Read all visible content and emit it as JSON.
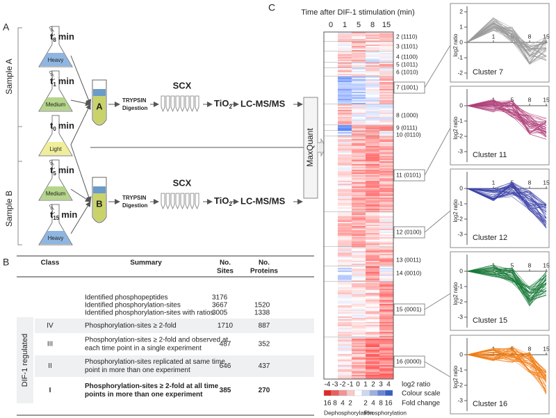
{
  "panel_a": {
    "label": "A",
    "sample_a": "Sample A",
    "sample_b": "Sample B",
    "flasks": [
      {
        "base": "t",
        "sub": "8",
        "unit": "min",
        "label": "Heavy",
        "tag": "DIF-1"
      },
      {
        "base": "t",
        "sub": "1",
        "unit": "min",
        "label": "Medium",
        "tag": "DIF-1"
      },
      {
        "base": "t",
        "sub": "0",
        "unit": "min",
        "label": "Light"
      },
      {
        "base": "t",
        "sub": "5",
        "unit": "min",
        "label": "Medium",
        "tag": "DIF-1"
      },
      {
        "base": "t",
        "sub": "15",
        "unit": "min",
        "label": "Heavy",
        "tag": "DIF-1"
      }
    ],
    "tubes": [
      "A",
      "B"
    ],
    "enzyme": "TRYPSIN",
    "digestion": "Digestion",
    "scx": "SCX",
    "tio2": {
      "base": "TiO",
      "sub": "2"
    },
    "lcms": "LC-MS/MS",
    "software": "MaxQuant"
  },
  "panel_b": {
    "label": "B",
    "headers": {
      "class": "Class",
      "summary": "Summary",
      "sites": [
        "No.",
        "Sites"
      ],
      "proteins": [
        "No.",
        "Proteins"
      ]
    },
    "group_label": "DIF-1 regulated",
    "identified": [
      {
        "summary": "Identified phosphopeptides",
        "sites": "3176"
      },
      {
        "summary": "Identified phosphorylation-sites",
        "sites": "3667",
        "proteins": "1520"
      },
      {
        "summary": "Identified phosphorylation-sites with ratios",
        "sites": "3005",
        "proteins": "1338"
      }
    ],
    "regulated": [
      {
        "class": "IV",
        "summary": [
          "Phosphorylation-sites  ≥ 2-fold"
        ],
        "sites": "1710",
        "proteins": "887"
      },
      {
        "class": "III",
        "summary": [
          "Phosphorylation-sites  ≥ 2-fold and observed at",
          "each time point in a single experiment"
        ],
        "sites": "487",
        "proteins": "352"
      },
      {
        "class": "II",
        "summary": [
          "Phosphorylation-sites replicated at same time",
          "point in more than one experiment"
        ],
        "sites": "646",
        "proteins": "437"
      },
      {
        "class": "I",
        "summary": [
          "Phosphorylation-sites  ≥ 2-fold at all time",
          "points in more than one experiment"
        ],
        "sites": "385",
        "proteins": "270",
        "bold": true
      }
    ]
  },
  "panel_c": {
    "label": "C",
    "title": "Time after DIF-1 stimulation (min)",
    "times": [
      "0",
      "1",
      "5",
      "8",
      "15"
    ],
    "clusters": [
      {
        "label": "2 (1110)"
      },
      {
        "label": "3 (1101)"
      },
      {
        "label": "4 (1100)"
      },
      {
        "label": "5 (1011)"
      },
      {
        "label": "6 (1010)"
      },
      {
        "label": "7 (1001)",
        "boxed": true
      },
      {
        "label": "8 (1000)"
      },
      {
        "label": "9 (0111)"
      },
      {
        "label": "10 (0110)"
      },
      {
        "label": "11 (0101)",
        "boxed": true
      },
      {
        "label": "12 (0100)",
        "boxed": true
      },
      {
        "label": "13 (0011)"
      },
      {
        "label": "14 (0010)"
      },
      {
        "label": "15 (0001)",
        "boxed": true
      },
      {
        "label": "16 (0000)",
        "boxed": true
      }
    ],
    "scale": {
      "log2_ticks": [
        "-4",
        "-3",
        "-2",
        "-1",
        "0",
        "1",
        "2",
        "3",
        "4"
      ],
      "log2_label": "log2 ratio",
      "scale_label": "Colour scale",
      "fold_dephos": [
        "16",
        "8",
        "4",
        "2"
      ],
      "fold_phos": [
        "2",
        "4",
        "8",
        "16"
      ],
      "fold_label": "Fold change",
      "dephos": "Dephosphorylation",
      "phos": "Phosphorylation"
    },
    "panels": [
      {
        "name": "Cluster 7",
        "color": "#9a9a9a",
        "yticks": [
          "2",
          "1",
          "0",
          "-1",
          "-2"
        ]
      },
      {
        "name": "Cluster 11",
        "color": "#b0407a",
        "yticks": [
          "0",
          "-1",
          "-2",
          "-3"
        ]
      },
      {
        "name": "Cluster 12",
        "color": "#3c43a8",
        "yticks": [
          "0",
          "-1",
          "-2",
          "-3"
        ]
      },
      {
        "name": "Cluster 15",
        "color": "#1a7a3a",
        "yticks": [
          "0",
          "-1",
          "-2",
          "-3"
        ]
      },
      {
        "name": "Cluster 16",
        "color": "#f07a10",
        "yticks": [
          "0",
          "-1",
          "-2",
          "-3"
        ]
      }
    ],
    "xticks": [
      "1",
      "5",
      "8",
      "15"
    ],
    "ylabel": "log2 ratio"
  }
}
